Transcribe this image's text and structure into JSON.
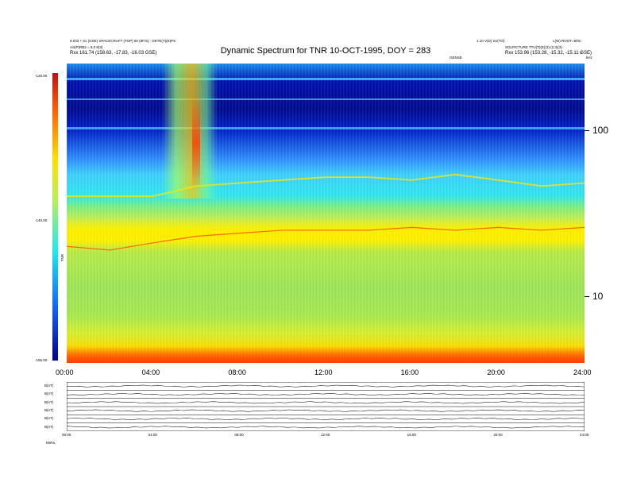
{
  "header": {
    "title": "Dynamic Spectrum for TNR 10-OCT-1995, DOY = 283",
    "top_left_line1": "9.033 + 51 (GSE) SPACECRAFT (TOP) 50 (8F/S) : DETE(T)(E)PS",
    "top_left_line2": "AS(P)RB2 = 8,0 8(3)",
    "top_left_line3": "Rxx 161.74 (158.63, -17.83, -16.03 GSE)",
    "top_right_line1": "1.10 V(D) 2U(TO)",
    "top_right_line2": "L(W) ROOT=9/0C",
    "top_right_line3": "SOLPICTURE TTU(T)(E)(3) (2,3)(3)",
    "top_right_line4": "Rxx 153.96 (153.28, -15.32, -15.11 GSE)",
    "mid_label": "GENSE",
    "unit_label": "kHz",
    "unit_v": "V"
  },
  "colorbar": {
    "label": "TNR",
    "ticks": [
      "-125.00",
      "-140.00",
      "-155.00"
    ]
  },
  "lower_panel": {
    "labels": [
      "B(nT)",
      "B(nT)",
      "B(nT)",
      "B(nT)",
      "B(nT)",
      "B(nT)"
    ],
    "x_ticks": [
      "00:00",
      "04:00",
      "08:00",
      "12:00",
      "16:00",
      "20:00",
      "24:00"
    ],
    "footer": "Mnhs."
  },
  "chart_data": {
    "type": "heatmap",
    "title": "Dynamic Spectrum for TNR 10-OCT-1995, DOY = 283",
    "xlabel": "",
    "ylabel": "kHz",
    "x_ticks": [
      "00:00",
      "04:00",
      "08:00",
      "12:00",
      "16:00",
      "20:00",
      "24:00"
    ],
    "xlim": [
      0,
      24
    ],
    "y_scale": "log",
    "y_ticks": [
      10,
      100
    ],
    "ylim": [
      4,
      250
    ],
    "colorbar_ticks": [
      -125.0,
      -140.0,
      -155.0
    ],
    "colorbar_range": [
      -155.0,
      -125.0
    ],
    "colorbar_label": "TNR",
    "features": [
      {
        "name": "upper_band_edge",
        "x": [
          0,
          2,
          4,
          6,
          8,
          10,
          12,
          14,
          16,
          18,
          20,
          22,
          24
        ],
        "y": [
          40,
          40,
          40,
          46,
          48,
          50,
          52,
          52,
          50,
          54,
          50,
          46,
          48
        ]
      },
      {
        "name": "lower_band_edge",
        "x": [
          0,
          2,
          4,
          6,
          8,
          10,
          12,
          14,
          16,
          18,
          20,
          22,
          24
        ],
        "y": [
          20,
          19,
          21,
          23,
          24,
          25,
          25,
          25,
          26,
          25,
          26,
          25,
          26
        ]
      }
    ],
    "grid": false
  }
}
